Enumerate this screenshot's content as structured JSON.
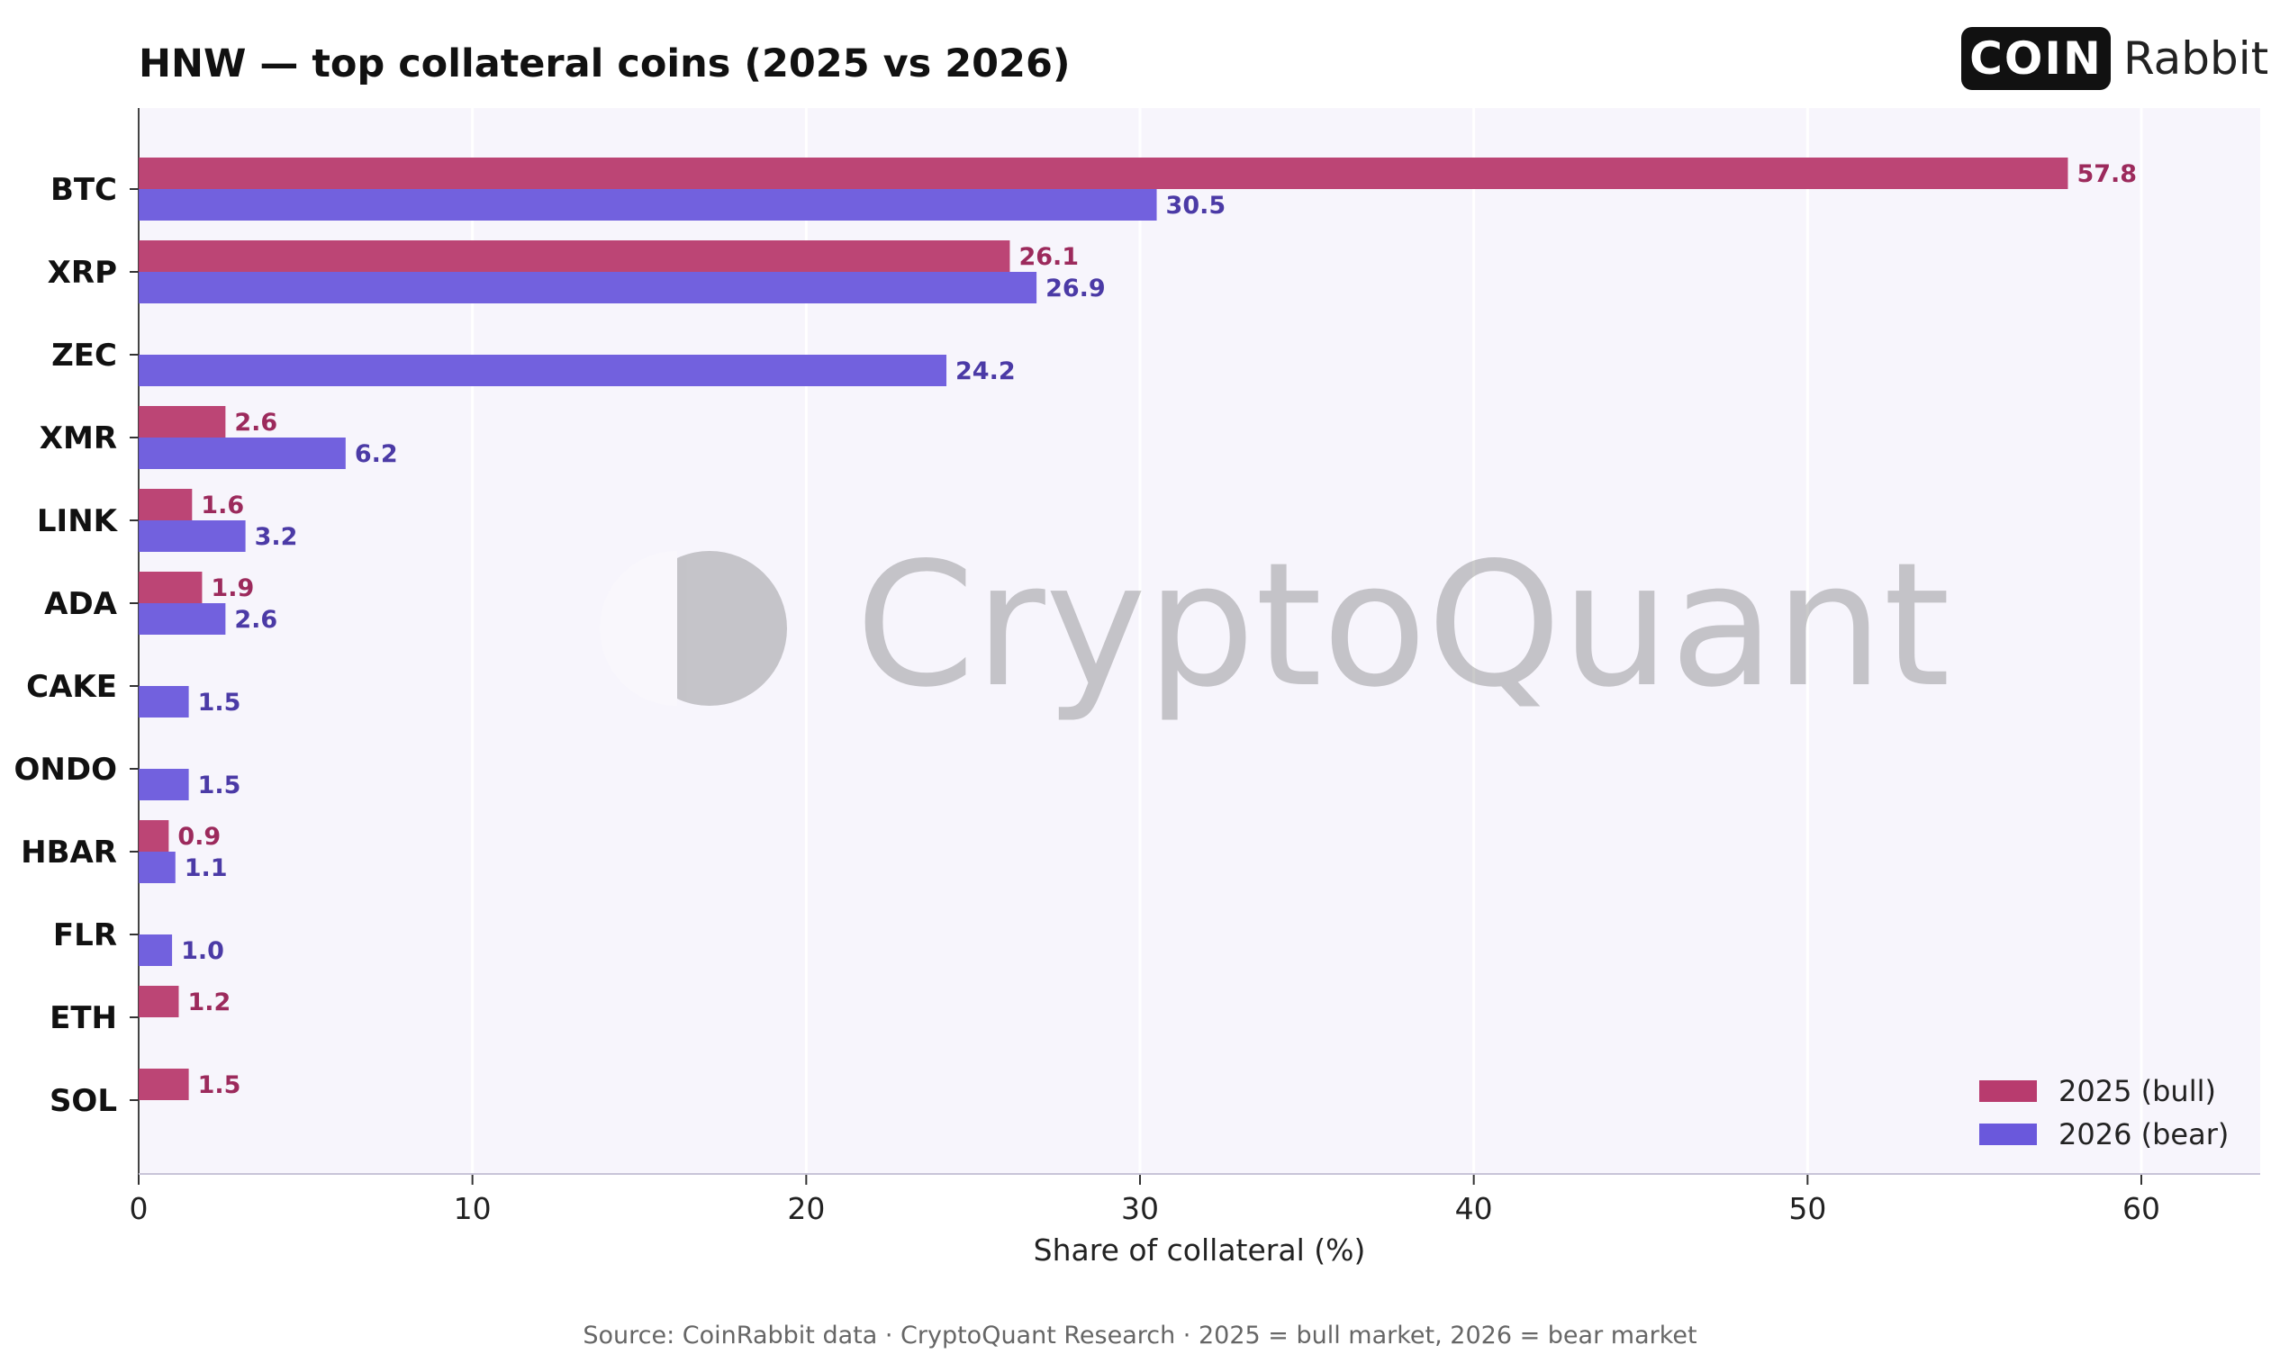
{
  "logo": {
    "box_text": "COIN",
    "text": "Rabbit"
  },
  "watermark": "CryptoQuant",
  "source_note": "Source: CoinRabbit data · CryptoQuant Research · 2025 = bull market, 2026 = bear market",
  "colors": {
    "bull": "#b83b6e",
    "bear": "#6a58dc",
    "bull_label": "#9c2a5c",
    "bear_label": "#4b3aa6",
    "plot_bg": "#f7f5fc"
  },
  "chart_data": {
    "type": "bar",
    "orientation": "horizontal",
    "title": "HNW — top collateral coins (2025 vs 2026)",
    "xlabel": "Share of collateral (%)",
    "ylabel": "",
    "xlim": [
      0,
      63.5
    ],
    "xticks": [
      0,
      10,
      20,
      30,
      40,
      50,
      60
    ],
    "grid": true,
    "legend_position": "bottom-right",
    "categories": [
      "BTC",
      "XRP",
      "ZEC",
      "XMR",
      "LINK",
      "ADA",
      "CAKE",
      "ONDO",
      "HBAR",
      "FLR",
      "ETH",
      "SOL"
    ],
    "series": [
      {
        "name": "2025 (bull)",
        "values": [
          57.8,
          26.1,
          null,
          2.6,
          1.6,
          1.9,
          null,
          null,
          0.9,
          null,
          1.2,
          1.5
        ],
        "labels": [
          "57.8",
          "26.1",
          null,
          "2.6",
          "1.6",
          "1.9",
          null,
          null,
          "0.9",
          null,
          "1.2",
          "1.5"
        ]
      },
      {
        "name": "2026 (bear)",
        "values": [
          30.5,
          26.9,
          24.2,
          6.2,
          3.2,
          2.6,
          1.5,
          1.5,
          1.1,
          1.0,
          null,
          null
        ],
        "labels": [
          "30.5",
          "26.9",
          "24.2",
          "6.2",
          "3.2",
          "2.6",
          "1.5",
          "1.5",
          "1.1",
          "1.0",
          null,
          null
        ]
      }
    ]
  }
}
